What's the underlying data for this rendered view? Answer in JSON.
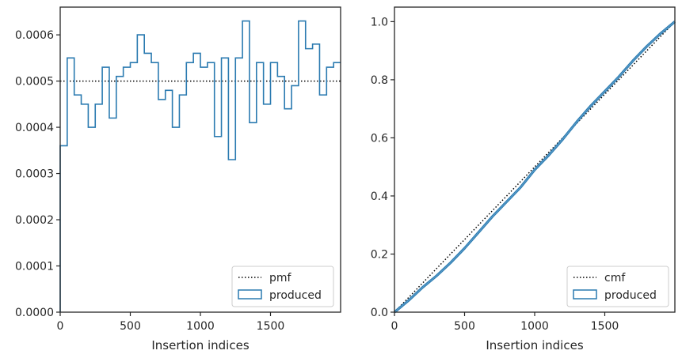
{
  "chart_data": [
    {
      "type": "histogram",
      "xlabel": "Insertion indices",
      "ylabel": "",
      "xlim": [
        0,
        2000
      ],
      "ylim": [
        0,
        0.00066
      ],
      "xticks": [
        0,
        500,
        1000,
        1500
      ],
      "xtick_labels": [
        "0",
        "500",
        "1000",
        "1500"
      ],
      "yticks": [
        0,
        0.0001,
        0.0002,
        0.0003,
        0.0004,
        0.0005,
        0.0006
      ],
      "ytick_labels": [
        "0.0000",
        "0.0001",
        "0.0002",
        "0.0003",
        "0.0004",
        "0.0005",
        "0.0006"
      ],
      "bin_width": 50,
      "bin_edges_start": 0,
      "series": [
        {
          "name": "produced",
          "style": "step",
          "color": "#2a7ab0",
          "values": [
            0.00036,
            0.00055,
            0.00047,
            0.00045,
            0.0004,
            0.00045,
            0.00053,
            0.00042,
            0.00051,
            0.00053,
            0.00054,
            0.0006,
            0.00056,
            0.00054,
            0.00046,
            0.00048,
            0.0004,
            0.00047,
            0.00054,
            0.00056,
            0.00053,
            0.00054,
            0.00038,
            0.00055,
            0.00033,
            0.00055,
            0.00063,
            0.00041,
            0.00054,
            0.00045,
            0.00054,
            0.00051,
            0.00044,
            0.00049,
            0.00063,
            0.00057,
            0.00058,
            0.00047,
            0.00053,
            0.00054
          ]
        },
        {
          "name": "pmf",
          "style": "dotted",
          "color": "#000000",
          "y": 0.0005
        }
      ],
      "legend": {
        "position": "bottom-right",
        "entries": [
          "pmf",
          "produced"
        ]
      }
    },
    {
      "type": "line",
      "xlabel": "Insertion indices",
      "ylabel": "",
      "xlim": [
        0,
        2000
      ],
      "ylim": [
        0,
        1.05
      ],
      "xticks": [
        0,
        500,
        1000,
        1500
      ],
      "xtick_labels": [
        "0",
        "500",
        "1000",
        "1500"
      ],
      "yticks": [
        0,
        0.2,
        0.4,
        0.6,
        0.8,
        1.0
      ],
      "ytick_labels": [
        "0.0",
        "0.2",
        "0.4",
        "0.6",
        "0.8",
        "1.0"
      ],
      "series": [
        {
          "name": "cmf",
          "style": "dotted",
          "color": "#000000",
          "x": [
            0,
            2000
          ],
          "y": [
            0,
            1.0
          ]
        },
        {
          "name": "produced",
          "style": "solid-band",
          "color": "#2a7ab0",
          "x": [
            0,
            100,
            200,
            300,
            400,
            500,
            600,
            700,
            800,
            900,
            1000,
            1100,
            1200,
            1300,
            1400,
            1500,
            1600,
            1700,
            1800,
            1900,
            2000
          ],
          "y": [
            0,
            0.04,
            0.085,
            0.125,
            0.17,
            0.22,
            0.275,
            0.33,
            0.38,
            0.43,
            0.49,
            0.54,
            0.595,
            0.655,
            0.71,
            0.76,
            0.81,
            0.865,
            0.915,
            0.96,
            1.0
          ]
        }
      ],
      "legend": {
        "position": "bottom-right",
        "entries": [
          "cmf",
          "produced"
        ]
      }
    }
  ]
}
